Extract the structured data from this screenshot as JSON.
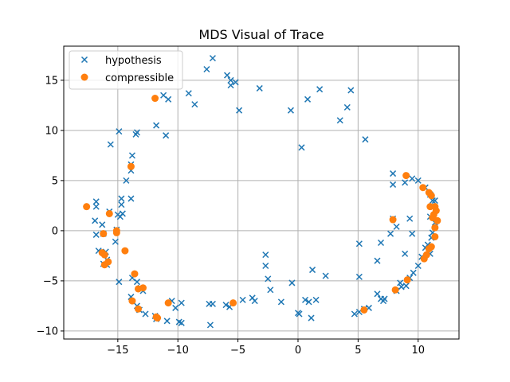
{
  "chart_data": {
    "type": "scatter",
    "title": "MDS Visual of Trace",
    "xlabel": "",
    "ylabel": "",
    "xlim": [
      -19.5,
      13.4
    ],
    "ylim": [
      -10.8,
      18.4
    ],
    "xticks": [
      -15,
      -10,
      -5,
      0,
      5,
      10
    ],
    "yticks": [
      -10,
      -5,
      0,
      5,
      10,
      15
    ],
    "xtick_labels": [
      "−15",
      "−10",
      "−5",
      "0",
      "5",
      "10"
    ],
    "ytick_labels": [
      "−10",
      "−5",
      "0",
      "5",
      "10",
      "15"
    ],
    "grid": true,
    "legend_position": "top-left",
    "series": [
      {
        "name": "hypothesis",
        "marker": "x",
        "color": "#1f77b4",
        "points": [
          [
            -7.1,
            17.2
          ],
          [
            -7.6,
            16.1
          ],
          [
            -5.9,
            15.5
          ],
          [
            -5.6,
            15.0
          ],
          [
            -5.2,
            14.8
          ],
          [
            -5.6,
            14.5
          ],
          [
            -3.2,
            14.2
          ],
          [
            1.8,
            14.1
          ],
          [
            4.4,
            14.0
          ],
          [
            -11.2,
            13.5
          ],
          [
            -10.8,
            13.1
          ],
          [
            -9.1,
            13.7
          ],
          [
            -8.6,
            12.6
          ],
          [
            -4.9,
            12.0
          ],
          [
            -0.6,
            12.0
          ],
          [
            0.8,
            13.1
          ],
          [
            4.1,
            12.3
          ],
          [
            3.5,
            11.0
          ],
          [
            -11.8,
            10.5
          ],
          [
            -11.0,
            9.5
          ],
          [
            -14.9,
            9.9
          ],
          [
            -13.4,
            9.8
          ],
          [
            -13.5,
            9.6
          ],
          [
            5.6,
            9.1
          ],
          [
            -15.6,
            8.6
          ],
          [
            0.3,
            8.3
          ],
          [
            -13.8,
            7.5
          ],
          [
            -13.9,
            6.6
          ],
          [
            -13.9,
            6.0
          ],
          [
            -14.3,
            5.0
          ],
          [
            -16.8,
            2.9
          ],
          [
            -16.8,
            2.4
          ],
          [
            -14.7,
            3.2
          ],
          [
            -14.7,
            2.6
          ],
          [
            -13.9,
            3.2
          ],
          [
            -15.7,
            1.9
          ],
          [
            -15.0,
            1.6
          ],
          [
            -14.6,
            1.7
          ],
          [
            -14.8,
            1.4
          ],
          [
            -16.9,
            1.0
          ],
          [
            -16.3,
            0.6
          ],
          [
            -15.1,
            0.1
          ],
          [
            -16.2,
            -0.3
          ],
          [
            -16.8,
            -0.4
          ],
          [
            -15.2,
            -1.1
          ],
          [
            -16.6,
            -2.0
          ],
          [
            -16.0,
            -2.1
          ],
          [
            -15.9,
            -2.9
          ],
          [
            -16.2,
            -3.3
          ],
          [
            -15.9,
            -3.4
          ],
          [
            -13.8,
            -4.7
          ],
          [
            -14.9,
            -5.1
          ],
          [
            -13.4,
            -5.1
          ],
          [
            -13.1,
            -5.7
          ],
          [
            -12.9,
            -6.0
          ],
          [
            -13.9,
            -6.6
          ],
          [
            -13.4,
            -7.5
          ],
          [
            -13.2,
            -7.9
          ],
          [
            -12.7,
            -8.3
          ],
          [
            -11.9,
            -8.5
          ],
          [
            -11.8,
            -8.8
          ],
          [
            -10.9,
            -9.0
          ],
          [
            -10.5,
            -7.0
          ],
          [
            -10.2,
            -7.7
          ],
          [
            -9.7,
            -7.2
          ],
          [
            -9.9,
            -9.1
          ],
          [
            -9.7,
            -9.2
          ],
          [
            -7.4,
            -7.3
          ],
          [
            -7.1,
            -7.3
          ],
          [
            -6.0,
            -7.4
          ],
          [
            -5.7,
            -7.6
          ],
          [
            -7.3,
            -9.4
          ],
          [
            -4.6,
            -6.9
          ],
          [
            -3.8,
            -6.7
          ],
          [
            -3.6,
            -7.0
          ],
          [
            -2.7,
            -2.4
          ],
          [
            -2.7,
            -3.5
          ],
          [
            -2.5,
            -4.8
          ],
          [
            -2.3,
            -5.9
          ],
          [
            -1.4,
            -7.1
          ],
          [
            -0.5,
            -5.2
          ],
          [
            0.0,
            -8.2
          ],
          [
            0.1,
            -8.3
          ],
          [
            0.6,
            -6.9
          ],
          [
            0.9,
            -7.1
          ],
          [
            1.1,
            -8.7
          ],
          [
            1.2,
            -3.9
          ],
          [
            1.5,
            -6.9
          ],
          [
            2.3,
            -4.5
          ],
          [
            4.7,
            -8.3
          ],
          [
            5.1,
            -8.1
          ],
          [
            5.5,
            -7.8
          ],
          [
            5.9,
            -7.7
          ],
          [
            6.6,
            -6.3
          ],
          [
            6.9,
            -6.8
          ],
          [
            7.1,
            -7.0
          ],
          [
            7.2,
            -6.8
          ],
          [
            6.6,
            -3.0
          ],
          [
            6.9,
            -1.2
          ],
          [
            5.1,
            -1.3
          ],
          [
            5.1,
            -4.6
          ],
          [
            7.7,
            -0.3
          ],
          [
            8.2,
            0.4
          ],
          [
            7.9,
            1.2
          ],
          [
            8.9,
            4.8
          ],
          [
            9.3,
            1.2
          ],
          [
            9.5,
            -0.3
          ],
          [
            8.9,
            -2.3
          ],
          [
            9.6,
            -4.2
          ],
          [
            10.0,
            -3.5
          ],
          [
            7.9,
            5.7
          ],
          [
            7.9,
            4.6
          ],
          [
            9.5,
            5.2
          ],
          [
            10.0,
            5.0
          ],
          [
            10.6,
            4.3
          ],
          [
            11.0,
            3.6
          ],
          [
            11.2,
            3.0
          ],
          [
            11.4,
            3.0
          ],
          [
            11.2,
            2.4
          ],
          [
            11.4,
            2.1
          ],
          [
            11.0,
            1.4
          ],
          [
            11.4,
            0.8
          ],
          [
            11.2,
            -0.2
          ],
          [
            11.1,
            -0.7
          ],
          [
            10.8,
            -1.4
          ],
          [
            10.6,
            -1.7
          ],
          [
            9.0,
            -5.5
          ],
          [
            8.6,
            -5.6
          ],
          [
            8.2,
            -6.0
          ],
          [
            8.5,
            -5.2
          ],
          [
            9.3,
            -4.7
          ],
          [
            10.3,
            -2.6
          ],
          [
            11.0,
            -2.3
          ]
        ]
      },
      {
        "name": "compressible",
        "marker": "o",
        "color": "#ff7f0e",
        "points": [
          [
            -11.9,
            13.2
          ],
          [
            -17.6,
            2.4
          ],
          [
            -15.7,
            1.7
          ],
          [
            -16.2,
            -0.3
          ],
          [
            -15.1,
            0.0
          ],
          [
            -15.1,
            -0.2
          ],
          [
            -13.9,
            6.4
          ],
          [
            -14.4,
            -2.0
          ],
          [
            -16.3,
            -2.2
          ],
          [
            -16.1,
            -2.4
          ],
          [
            -15.8,
            -3.1
          ],
          [
            -16.1,
            -3.4
          ],
          [
            -13.6,
            -4.3
          ],
          [
            -13.3,
            -5.8
          ],
          [
            -12.9,
            -5.7
          ],
          [
            -13.8,
            -7.0
          ],
          [
            -13.3,
            -7.8
          ],
          [
            -11.8,
            -8.6
          ],
          [
            -11.7,
            -8.7
          ],
          [
            -10.8,
            -7.2
          ],
          [
            -5.4,
            -7.2
          ],
          [
            5.5,
            -7.9
          ],
          [
            7.9,
            1.1
          ],
          [
            8.1,
            -5.9
          ],
          [
            9.1,
            -4.9
          ],
          [
            9.0,
            5.5
          ],
          [
            10.4,
            4.3
          ],
          [
            10.5,
            -2.8
          ],
          [
            10.7,
            -2.4
          ],
          [
            10.9,
            3.8
          ],
          [
            11.1,
            3.5
          ],
          [
            10.9,
            -1.8
          ],
          [
            11.1,
            -1.6
          ],
          [
            11.0,
            2.4
          ],
          [
            11.4,
            2.4
          ],
          [
            11.3,
            1.6
          ],
          [
            11.5,
            2.0
          ],
          [
            11.6,
            1.0
          ],
          [
            11.4,
            0.3
          ],
          [
            11.4,
            -0.6
          ],
          [
            11.2,
            1.3
          ]
        ]
      }
    ]
  }
}
